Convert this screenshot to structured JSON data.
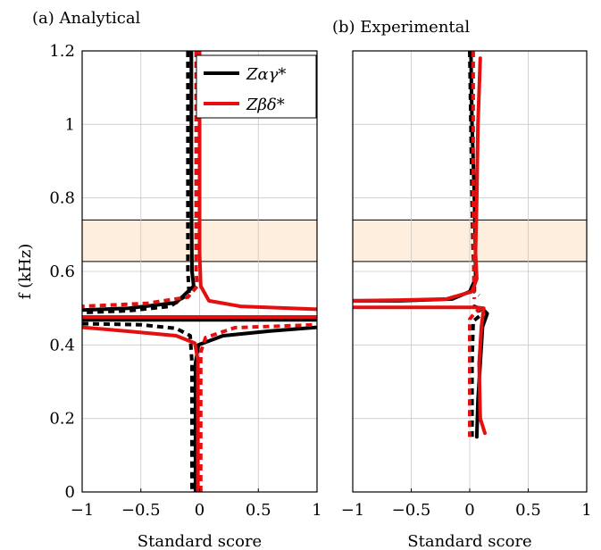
{
  "chart_data": [
    {
      "type": "line",
      "title": "(a) Analytical",
      "xlabel": "Standard score",
      "ylabel": "f (kHz)",
      "xlim": [
        -1,
        1
      ],
      "ylim": [
        0,
        1.2
      ],
      "xticks": [
        "−1",
        "−0.5",
        "0",
        "0.5",
        "1"
      ],
      "yticks": [
        "0",
        "0.2",
        "0.4",
        "0.6",
        "0.8",
        "1",
        "1.2"
      ],
      "grid": true,
      "legend_position": "top-right",
      "shaded_band": {
        "y_from": 0.627,
        "y_to": 0.74,
        "color": "#fdeedd"
      },
      "series": [
        {
          "name": "Zαγ*",
          "color": "#000000",
          "style": "solid",
          "points": [
            [
              -0.07,
              1.2
            ],
            [
              -0.07,
              0.8
            ],
            [
              -0.065,
              0.6
            ],
            [
              -0.05,
              0.56
            ],
            [
              -0.2,
              0.515
            ],
            [
              -0.6,
              0.5
            ],
            [
              -1,
              0.495
            ]
          ]
        },
        {
          "name": "",
          "color": "#000000",
          "style": "solid",
          "points": [
            [
              -0.035,
              0.0
            ],
            [
              -0.035,
              0.35
            ],
            [
              -0.01,
              0.4
            ],
            [
              0.2,
              0.425
            ],
            [
              0.6,
              0.438
            ],
            [
              1,
              0.448
            ]
          ]
        },
        {
          "name": "",
          "color": "#000000",
          "style": "dashed",
          "points": [
            [
              -0.1,
              1.2
            ],
            [
              -0.1,
              0.6
            ],
            [
              -0.09,
              0.54
            ],
            [
              -0.25,
              0.505
            ],
            [
              -0.6,
              0.493
            ],
            [
              -1,
              0.488
            ]
          ]
        },
        {
          "name": "",
          "color": "#000000",
          "style": "dashed",
          "points": [
            [
              -1,
              0.458
            ],
            [
              -0.5,
              0.455
            ],
            [
              -0.2,
              0.445
            ],
            [
              -0.08,
              0.425
            ],
            [
              -0.065,
              0.35
            ],
            [
              -0.065,
              0.0
            ]
          ]
        },
        {
          "name": "",
          "color": "#000000",
          "style": "solid",
          "points": [
            [
              -1,
              0.468
            ],
            [
              1,
              0.468
            ]
          ]
        },
        {
          "name": "Zβδ*",
          "color": "#e41010",
          "style": "solid",
          "points": [
            [
              0.0,
              1.2
            ],
            [
              0.0,
              0.65
            ],
            [
              0.01,
              0.56
            ],
            [
              0.08,
              0.52
            ],
            [
              0.35,
              0.505
            ],
            [
              1,
              0.497
            ]
          ]
        },
        {
          "name": "",
          "color": "#e41010",
          "style": "solid",
          "points": [
            [
              -1,
              0.448
            ],
            [
              -0.6,
              0.437
            ],
            [
              -0.2,
              0.425
            ],
            [
              -0.04,
              0.405
            ],
            [
              -0.015,
              0.36
            ],
            [
              -0.015,
              0.0
            ]
          ]
        },
        {
          "name": "",
          "color": "#e41010",
          "style": "dashed",
          "points": [
            [
              -0.03,
              1.2
            ],
            [
              -0.03,
              0.6
            ],
            [
              -0.02,
              0.56
            ],
            [
              -0.1,
              0.53
            ],
            [
              -0.45,
              0.513
            ],
            [
              -1,
              0.505
            ]
          ]
        },
        {
          "name": "",
          "color": "#e41010",
          "style": "dashed",
          "points": [
            [
              0.01,
              0.0
            ],
            [
              0.01,
              0.38
            ],
            [
              0.05,
              0.42
            ],
            [
              0.3,
              0.447
            ],
            [
              1,
              0.455
            ]
          ]
        },
        {
          "name": "",
          "color": "#e41010",
          "style": "solid",
          "points": [
            [
              -1,
              0.476
            ],
            [
              1,
              0.476
            ]
          ]
        }
      ]
    },
    {
      "type": "line",
      "title": "(b) Experimental",
      "xlabel": "Standard score",
      "xlim": [
        -1,
        1
      ],
      "ylim": [
        0,
        1.2
      ],
      "xticks": [
        "−1",
        "−0.5",
        "0",
        "0.5",
        "1"
      ],
      "grid": true,
      "shaded_band": {
        "y_from": 0.627,
        "y_to": 0.74,
        "color": "#fdeedd"
      },
      "series": [
        {
          "name": "",
          "color": "#000000",
          "style": "solid",
          "points": [
            [
              0.01,
              1.2
            ],
            [
              0.02,
              1.0
            ],
            [
              0.04,
              0.8
            ],
            [
              0.05,
              0.65
            ],
            [
              0.05,
              0.58
            ],
            [
              0.0,
              0.545
            ],
            [
              -0.15,
              0.525
            ],
            [
              -0.6,
              0.52
            ],
            [
              -1,
              0.52
            ]
          ]
        },
        {
          "name": "",
          "color": "#000000",
          "style": "solid",
          "points": [
            [
              0.04,
              0.505
            ],
            [
              0.12,
              0.495
            ],
            [
              0.15,
              0.485
            ],
            [
              0.11,
              0.45
            ],
            [
              0.09,
              0.35
            ],
            [
              0.07,
              0.25
            ],
            [
              0.06,
              0.15
            ]
          ]
        },
        {
          "name": "",
          "color": "#000000",
          "style": "dashed",
          "points": [
            [
              0.0,
              1.2
            ],
            [
              0.01,
              1.0
            ],
            [
              0.02,
              0.8
            ],
            [
              0.03,
              0.65
            ],
            [
              0.04,
              0.58
            ],
            [
              0.04,
              0.545
            ],
            [
              0.08,
              0.535
            ]
          ]
        },
        {
          "name": "",
          "color": "#000000",
          "style": "dashed",
          "points": [
            [
              0.07,
              0.505
            ],
            [
              0.09,
              0.48
            ],
            [
              0.03,
              0.465
            ],
            [
              0.02,
              0.35
            ],
            [
              0.02,
              0.15
            ]
          ]
        },
        {
          "name": "",
          "color": "#e41010",
          "style": "solid",
          "points": [
            [
              0.09,
              1.18
            ],
            [
              0.07,
              1.0
            ],
            [
              0.06,
              0.8
            ],
            [
              0.05,
              0.65
            ],
            [
              0.06,
              0.58
            ],
            [
              0.02,
              0.545
            ],
            [
              -0.2,
              0.525
            ],
            [
              -0.6,
              0.522
            ],
            [
              -1,
              0.52
            ]
          ]
        },
        {
          "name": "",
          "color": "#e41010",
          "style": "solid",
          "points": [
            [
              -1,
              0.502
            ],
            [
              -0.5,
              0.502
            ],
            [
              0.05,
              0.502
            ],
            [
              0.12,
              0.5
            ],
            [
              0.1,
              0.45
            ],
            [
              0.08,
              0.35
            ],
            [
              0.09,
              0.2
            ],
            [
              0.13,
              0.16
            ]
          ]
        },
        {
          "name": "",
          "color": "#e41010",
          "style": "dashed",
          "points": [
            [
              0.03,
              1.2
            ],
            [
              0.03,
              1.0
            ],
            [
              0.03,
              0.8
            ],
            [
              0.035,
              0.65
            ],
            [
              0.035,
              0.55
            ],
            [
              0.04,
              0.525
            ]
          ]
        },
        {
          "name": "",
          "color": "#e41010",
          "style": "dashed",
          "points": [
            [
              0.1,
              0.5
            ],
            [
              0.05,
              0.49
            ],
            [
              0.0,
              0.47
            ],
            [
              0.0,
              0.35
            ],
            [
              0.0,
              0.15
            ]
          ]
        }
      ]
    }
  ]
}
